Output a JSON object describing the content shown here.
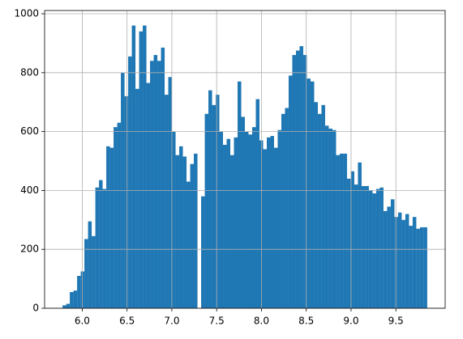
{
  "chart_data": {
    "type": "histogram",
    "color": "#1f77b4",
    "grid": true,
    "bins": [
      5.78,
      5.8207,
      5.8614,
      5.9021,
      5.9428,
      5.9835,
      6.0242,
      6.0649,
      6.1056,
      6.1463,
      6.187,
      6.2277,
      6.2684,
      6.3091,
      6.3498,
      6.3905,
      6.4312,
      6.4719,
      6.5126,
      6.5533,
      6.594,
      6.6347,
      6.6754,
      6.7161,
      6.7568,
      6.7975,
      6.8382,
      6.8789,
      6.9196,
      6.9603,
      7.001,
      7.0417,
      7.0824,
      7.1231,
      7.1638,
      7.2045,
      7.2452,
      7.2859,
      7.3266,
      7.3673,
      7.408,
      7.4487,
      7.4894,
      7.5301,
      7.5708,
      7.6115,
      7.6522,
      7.6929,
      7.7336,
      7.7743,
      7.815,
      7.8557,
      7.8964,
      7.9371,
      7.9778,
      8.0185,
      8.0592,
      8.0999,
      8.1406,
      8.1813,
      8.222,
      8.2627,
      8.3034,
      8.3441,
      8.3848,
      8.4255,
      8.4662,
      8.5069,
      8.5476,
      8.5883,
      8.629,
      8.6697,
      8.7104,
      8.7511,
      8.7918,
      8.8325,
      8.8732,
      8.9139,
      8.9546,
      8.9953,
      9.036,
      9.0767,
      9.1174,
      9.1581,
      9.1988,
      9.2395,
      9.2802,
      9.3209,
      9.3616,
      9.4023,
      9.443,
      9.4837,
      9.5244,
      9.5651,
      9.6058,
      9.6465,
      9.6872,
      9.7279,
      9.7686,
      9.8093,
      9.85
    ],
    "values": [
      10,
      15,
      55,
      60,
      110,
      125,
      235,
      295,
      245,
      410,
      435,
      405,
      550,
      545,
      615,
      630,
      800,
      720,
      855,
      960,
      745,
      940,
      960,
      765,
      840,
      860,
      840,
      885,
      725,
      785,
      600,
      520,
      550,
      515,
      430,
      490,
      525,
      0,
      380,
      660,
      740,
      690,
      725,
      600,
      555,
      575,
      520,
      580,
      770,
      650,
      600,
      590,
      615,
      710,
      570,
      540,
      580,
      585,
      545,
      605,
      660,
      680,
      790,
      860,
      875,
      890,
      860,
      780,
      770,
      700,
      660,
      690,
      620,
      610,
      605,
      520,
      525,
      525,
      440,
      465,
      420,
      495,
      415,
      415,
      400,
      390,
      405,
      410,
      330,
      345,
      370,
      310,
      325,
      300,
      320,
      280,
      310,
      270,
      275,
      275
    ],
    "xlim": [
      5.58,
      10.05
    ],
    "ylim": [
      0,
      1011
    ],
    "xticks": [
      {
        "value": 6.0,
        "label": "6.0"
      },
      {
        "value": 6.5,
        "label": "6.5"
      },
      {
        "value": 7.0,
        "label": "7.0"
      },
      {
        "value": 7.5,
        "label": "7.5"
      },
      {
        "value": 8.0,
        "label": "8.0"
      },
      {
        "value": 8.5,
        "label": "8.5"
      },
      {
        "value": 9.0,
        "label": "9.0"
      },
      {
        "value": 9.5,
        "label": "9.5"
      }
    ],
    "yticks": [
      0,
      200,
      400,
      600,
      800,
      1000
    ]
  }
}
